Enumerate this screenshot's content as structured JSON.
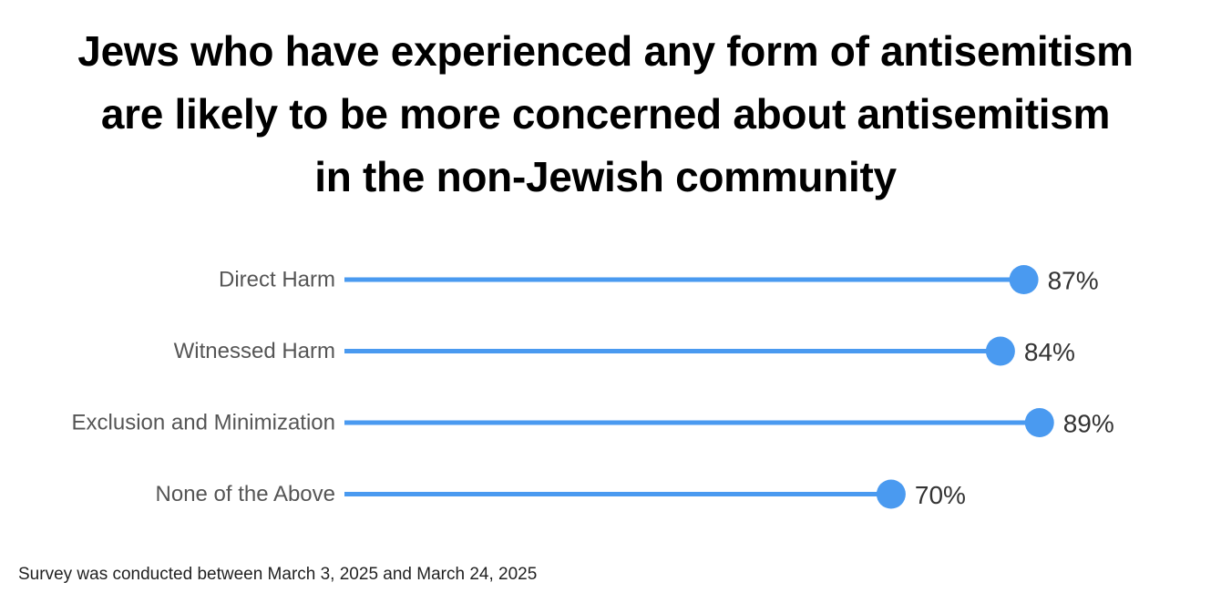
{
  "title_lines": [
    "Jews who have experienced any form of antisemitism",
    "are likely to be more concerned about antisemitism",
    "in the non-Jewish community"
  ],
  "footnote": "Survey was conducted between March 3, 2025 and March 24, 2025",
  "colors": {
    "accent": "#4a9af0",
    "title": "#000000",
    "category_text": "#555555",
    "value_text": "#333333"
  },
  "chart_data": {
    "type": "lollipop",
    "title": "Jews who have experienced any form of antisemitism are likely to be more concerned about antisemitism in the non-Jewish community",
    "categories": [
      "Direct Harm",
      "Witnessed Harm",
      "Exclusion and Minimization",
      "None of the Above"
    ],
    "values": [
      87,
      84,
      89,
      70
    ],
    "value_labels": [
      "87%",
      "84%",
      "89%",
      "70%"
    ],
    "unit": "%",
    "xlim": [
      0,
      100
    ],
    "grid": false,
    "legend": "none"
  }
}
